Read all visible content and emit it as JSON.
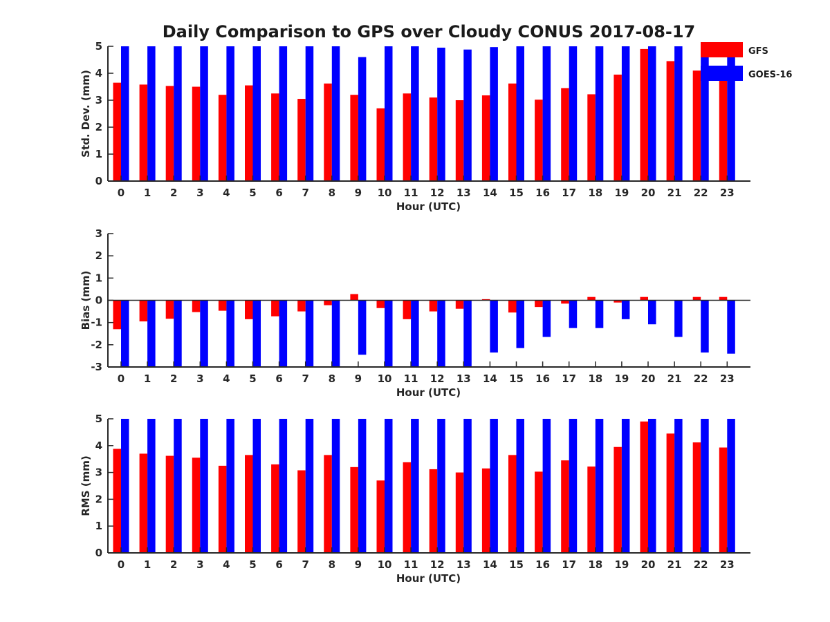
{
  "colors": {
    "gfs": "#ff0000",
    "goes": "#0000ff",
    "axis": "#262626"
  },
  "title": "Daily Comparison to GPS over Cloudy CONUS 2017-08-17",
  "legend": {
    "placement": "top-right",
    "items": [
      "GFS",
      "GOES-16"
    ]
  },
  "chart_data": [
    {
      "type": "bar",
      "categories": [
        "0",
        "1",
        "2",
        "3",
        "4",
        "5",
        "6",
        "7",
        "8",
        "9",
        "10",
        "11",
        "12",
        "13",
        "14",
        "15",
        "16",
        "17",
        "18",
        "19",
        "20",
        "21",
        "22",
        "23"
      ],
      "xlabel": "Hour (UTC)",
      "ylabel": "Std. Dev. (mm)",
      "ylim": [
        0,
        5
      ],
      "yticks": [
        "0",
        "1",
        "2",
        "3",
        "4",
        "5"
      ],
      "grid": false,
      "series": [
        {
          "name": "GFS",
          "values": [
            3.65,
            3.58,
            3.53,
            3.5,
            3.2,
            3.55,
            3.25,
            3.05,
            3.62,
            3.2,
            2.7,
            3.25,
            3.1,
            3.0,
            3.18,
            3.62,
            3.02,
            3.45,
            3.22,
            3.95,
            4.9,
            4.45,
            4.1,
            3.9
          ]
        },
        {
          "name": "GOES-16",
          "values": [
            5,
            5,
            5,
            5,
            5,
            5,
            5,
            5,
            5,
            4.6,
            5,
            5,
            4.95,
            4.88,
            4.97,
            5,
            5,
            5,
            5,
            5,
            5,
            5,
            5,
            5
          ]
        }
      ]
    },
    {
      "type": "bar",
      "categories": [
        "0",
        "1",
        "2",
        "3",
        "4",
        "5",
        "6",
        "7",
        "8",
        "9",
        "10",
        "11",
        "12",
        "13",
        "14",
        "15",
        "16",
        "17",
        "18",
        "19",
        "20",
        "21",
        "22",
        "23"
      ],
      "xlabel": "Hour (UTC)",
      "ylabel": "Bias (mm)",
      "ylim": [
        -3,
        3
      ],
      "yticks": [
        "-3",
        "-2",
        "-1",
        "0",
        "1",
        "2",
        "3"
      ],
      "grid": false,
      "series": [
        {
          "name": "GFS",
          "values": [
            -1.3,
            -0.95,
            -0.83,
            -0.53,
            -0.47,
            -0.85,
            -0.72,
            -0.5,
            -0.22,
            0.28,
            -0.35,
            -0.85,
            -0.5,
            -0.38,
            0.05,
            -0.55,
            -0.3,
            -0.15,
            0.15,
            -0.1,
            0.15,
            0.0,
            0.15,
            0.15
          ]
        },
        {
          "name": "GOES-16",
          "values": [
            -3,
            -3,
            -3,
            -3,
            -3,
            -3,
            -3,
            -3,
            -3,
            -2.45,
            -3,
            -3,
            -3,
            -3,
            -2.35,
            -2.15,
            -1.65,
            -1.25,
            -1.25,
            -0.85,
            -1.08,
            -1.65,
            -2.35,
            -2.4
          ]
        }
      ]
    },
    {
      "type": "bar",
      "categories": [
        "0",
        "1",
        "2",
        "3",
        "4",
        "5",
        "6",
        "7",
        "8",
        "9",
        "10",
        "11",
        "12",
        "13",
        "14",
        "15",
        "16",
        "17",
        "18",
        "19",
        "20",
        "21",
        "22",
        "23"
      ],
      "xlabel": "Hour (UTC)",
      "ylabel": "RMS (mm)",
      "ylim": [
        0,
        5
      ],
      "yticks": [
        "0",
        "1",
        "2",
        "3",
        "4",
        "5"
      ],
      "grid": false,
      "series": [
        {
          "name": "GFS",
          "values": [
            3.88,
            3.7,
            3.62,
            3.55,
            3.25,
            3.65,
            3.3,
            3.08,
            3.65,
            3.2,
            2.7,
            3.38,
            3.12,
            3.0,
            3.15,
            3.65,
            3.03,
            3.45,
            3.22,
            3.95,
            4.9,
            4.45,
            4.12,
            3.93
          ]
        },
        {
          "name": "GOES-16",
          "values": [
            5,
            5,
            5,
            5,
            5,
            5,
            5,
            5,
            5,
            5,
            5,
            5,
            5,
            5,
            5,
            5,
            5,
            5,
            5,
            5,
            5,
            5,
            5,
            5
          ]
        }
      ]
    }
  ]
}
